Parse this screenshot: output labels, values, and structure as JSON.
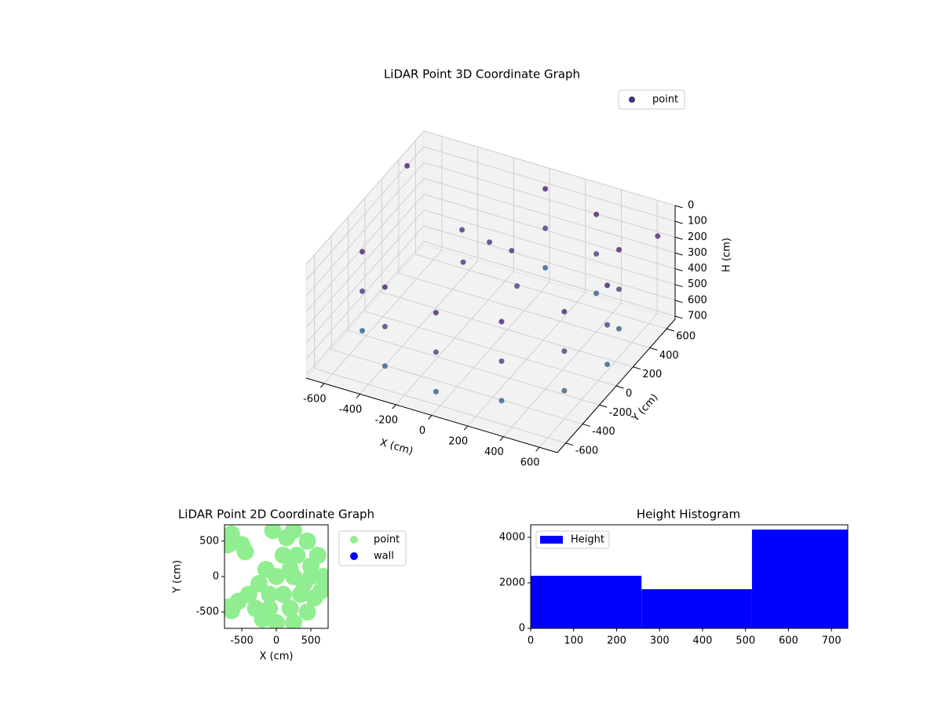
{
  "chart_data": [
    {
      "type": "scatter3d",
      "title": "LiDAR Point 3D Coordinate Graph",
      "x_label": "X (cm)",
      "y_label": "Y (cm)",
      "z_label": "H (cm)",
      "series": [
        {
          "name": "point",
          "color": "#46327e",
          "colormap": "viridis",
          "x": [
            -563,
            -563,
            -563,
            -325,
            -325,
            -325,
            0,
            0,
            0,
            325,
            325,
            325,
            563,
            563,
            563,
            650,
            650,
            650,
            563,
            563,
            563,
            325,
            325,
            325,
            0,
            0,
            0,
            -100,
            0,
            -200,
            100,
            -300,
            -700,
            650
          ],
          "y": [
            -325,
            -325,
            -325,
            -563,
            -563,
            -563,
            -650,
            -650,
            -650,
            -563,
            -563,
            -563,
            -325,
            -325,
            -325,
            0,
            0,
            0,
            325,
            325,
            325,
            563,
            563,
            563,
            650,
            650,
            650,
            200,
            250,
            100,
            100,
            300,
            500,
            600
          ],
          "z": [
            100,
            350,
            600,
            100,
            350,
            600,
            100,
            350,
            600,
            100,
            350,
            600,
            100,
            350,
            600,
            100,
            350,
            600,
            100,
            350,
            600,
            100,
            350,
            600,
            100,
            350,
            600,
            200,
            250,
            300,
            350,
            250,
            100,
            150
          ]
        }
      ],
      "xlim": [
        -700,
        700
      ],
      "ylim": [
        -700,
        700
      ],
      "zlim": [
        0,
        720
      ],
      "z_inverted": true,
      "xticks": [
        -600,
        -400,
        -200,
        0,
        200,
        400,
        600
      ],
      "yticks": [
        -600,
        -400,
        -200,
        0,
        200,
        400,
        600
      ],
      "zticks": [
        0,
        100,
        200,
        300,
        400,
        500,
        600,
        700
      ],
      "grid": true,
      "legend": "upper right"
    },
    {
      "type": "scatter",
      "title": "LiDAR Point 2D Coordinate Graph",
      "x_label": "X (cm)",
      "y_label": "Y (cm)",
      "series": [
        {
          "name": "point",
          "color": "#90ee90",
          "x": [
            0,
            250,
            500,
            680,
            600,
            450,
            250,
            300,
            100,
            150,
            -50,
            -150,
            -250,
            -400,
            -550,
            -650,
            -700,
            -100,
            100,
            350,
            550,
            650,
            450,
            250,
            0,
            -200,
            -100,
            200,
            -650,
            -700,
            -500,
            -450,
            -300,
            500,
            400,
            200
          ],
          "y": [
            0,
            0,
            0,
            0,
            300,
            500,
            650,
            300,
            300,
            550,
            650,
            100,
            -100,
            -250,
            -350,
            -480,
            -430,
            -250,
            -250,
            -250,
            -300,
            -200,
            -500,
            -650,
            -650,
            -600,
            -450,
            -450,
            600,
            450,
            450,
            350,
            -450,
            150,
            -100,
            100
          ]
        },
        {
          "name": "wall",
          "color": "#0000ff",
          "x": [],
          "y": []
        }
      ],
      "xlim": [
        -750,
        750
      ],
      "ylim": [
        -730,
        730
      ],
      "xticks": [
        -500,
        0,
        500
      ],
      "yticks": [
        -500,
        0,
        500
      ],
      "legend": "outside right"
    },
    {
      "type": "histogram",
      "title": "Height Histogram",
      "series": [
        {
          "name": "Height",
          "color": "#0000ff",
          "bins": [
            0,
            258,
            515,
            738
          ],
          "values": [
            2310,
            1720,
            4340
          ]
        }
      ],
      "xlim": [
        0,
        738
      ],
      "ylim": [
        0,
        4550
      ],
      "xticks": [
        0,
        100,
        200,
        300,
        400,
        500,
        600,
        700
      ],
      "yticks": [
        0,
        2000,
        4000
      ],
      "legend": "upper left"
    }
  ]
}
